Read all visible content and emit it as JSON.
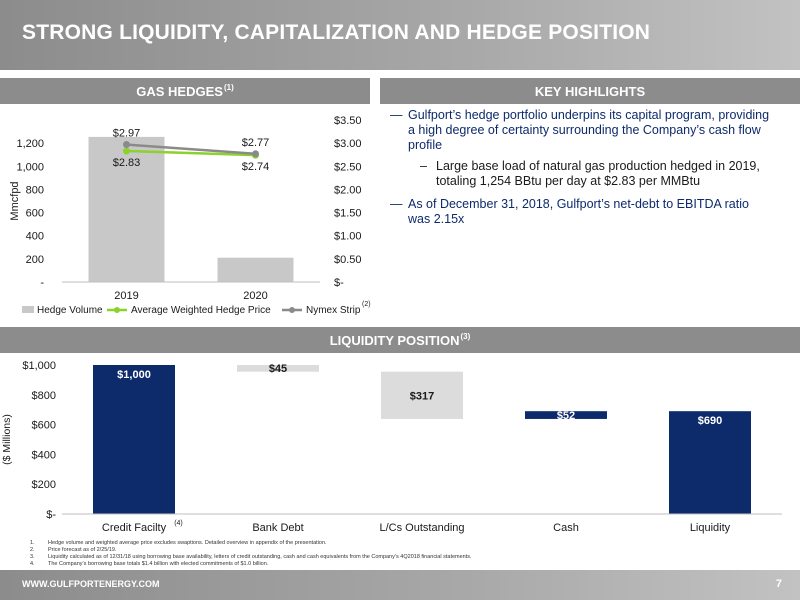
{
  "title": "STRONG LIQUIDITY, CAPITALIZATION AND HEDGE POSITION",
  "gas_hedges": {
    "header": "GAS HEDGES",
    "header_sup": "(1)"
  },
  "key_highlights": {
    "header": "KEY HIGHLIGHTS",
    "bullet1_lines": [
      "Gulfport’s hedge portfolio underpins its capital program, providing",
      "a high degree of certainty surrounding the Company’s cash flow",
      "profile"
    ],
    "sub1_lines": [
      "Large base load of natural gas production hedged in 2019,",
      "totaling 1,254 BBtu per day at $2.83 per MMBtu"
    ],
    "bullet2_lines": [
      "As of December 31, 2018, Gulfport’s net-debt to EBITDA ratio",
      "was 2.15x"
    ]
  },
  "liquidity": {
    "header": "LIQUIDITY POSITION",
    "header_sup": "(3)"
  },
  "colors": {
    "navy": "#0d2a6b",
    "bar_gray": "#c8c8c8",
    "light_gray": "#dcdcdc",
    "green": "#8cd12c",
    "nymex_gray": "#8a8a8a",
    "header_gray": "#8c8c8c"
  },
  "chart_data": [
    {
      "type": "bar",
      "categories": [
        "2019",
        "2020"
      ],
      "series": [
        {
          "name": "Hedge Volume",
          "values": [
            1254,
            210
          ],
          "axis": "left"
        },
        {
          "name": "Average Weighted Hedge Price",
          "values": [
            2.83,
            2.74
          ],
          "axis": "right",
          "type": "line"
        },
        {
          "name": "Nymex Strip",
          "values": [
            2.97,
            2.77
          ],
          "axis": "right",
          "type": "line"
        }
      ],
      "price_labels": [
        {
          "text": "$2.97",
          "series": "Nymex Strip",
          "index": 0
        },
        {
          "text": "$2.77",
          "series": "Nymex Strip",
          "index": 1
        },
        {
          "text": "$2.83",
          "series": "Average Weighted Hedge Price",
          "index": 0
        },
        {
          "text": "$2.74",
          "series": "Average Weighted Hedge Price",
          "index": 1
        }
      ],
      "ylabel": "Mmcfpd",
      "ylim": [
        0,
        1400
      ],
      "y2lim": [
        0,
        3.5
      ],
      "yticks": [
        {
          "value": 0,
          "label": "-"
        },
        {
          "value": 200,
          "label": "200"
        },
        {
          "value": 400,
          "label": "400"
        },
        {
          "value": 600,
          "label": "600"
        },
        {
          "value": 800,
          "label": "800"
        },
        {
          "value": 1000,
          "label": "1,000"
        },
        {
          "value": 1200,
          "label": "1,200"
        }
      ],
      "y2ticks": [
        {
          "value": 0,
          "label": "$-"
        },
        {
          "value": 0.5,
          "label": "$0.50"
        },
        {
          "value": 1.0,
          "label": "$1.00"
        },
        {
          "value": 1.5,
          "label": "$1.50"
        },
        {
          "value": 2.0,
          "label": "$2.00"
        },
        {
          "value": 2.5,
          "label": "$2.50"
        },
        {
          "value": 3.0,
          "label": "$3.00"
        },
        {
          "value": 3.5,
          "label": "$3.50"
        }
      ],
      "legend_position": "bottom",
      "legend_sup": "(2)"
    },
    {
      "type": "bar",
      "subtype": "waterfall",
      "categories": [
        "Credit Facilty",
        "Bank Debt",
        "L/Cs Outstanding",
        "Cash",
        "Liquidity"
      ],
      "category_sups": [
        "(4)",
        "",
        "",
        "",
        ""
      ],
      "bars": [
        {
          "label": "$1,000",
          "bottom": 0,
          "top": 1000,
          "color": "navy"
        },
        {
          "label": "$45",
          "bottom": 955,
          "top": 1000,
          "color": "light_gray"
        },
        {
          "label": "$317",
          "bottom": 638,
          "top": 955,
          "color": "light_gray"
        },
        {
          "label": "$52",
          "bottom": 638,
          "top": 690,
          "color": "navy"
        },
        {
          "label": "$690",
          "bottom": 0,
          "top": 690,
          "color": "navy"
        }
      ],
      "ylabel": "($ Millions)",
      "ylim": [
        0,
        1000
      ],
      "yticks": [
        {
          "value": 0,
          "label": "$-"
        },
        {
          "value": 200,
          "label": "$200"
        },
        {
          "value": 400,
          "label": "$400"
        },
        {
          "value": 600,
          "label": "$600"
        },
        {
          "value": 800,
          "label": "$800"
        },
        {
          "value": 1000,
          "label": "$1,000"
        }
      ]
    }
  ],
  "footnotes": [
    {
      "num": "1.",
      "text": "Hedge volume and weighted average price excludes swaptions. Detailed overview in appendix of the presentation."
    },
    {
      "num": "2.",
      "text": "Price forecast as of 2/25/19."
    },
    {
      "num": "3.",
      "text": "Liquidity calculated as of 12/31/18 using borrowing base availability, letters of credit outstanding, cash and cash equivalents from the Company’s 4Q2018 financial statements."
    },
    {
      "num": "4.",
      "text": "The Company’s borrowing base totals $1.4 billion with elected commitments of $1.0 billion."
    }
  ],
  "footer": {
    "url": "WWW.GULFPORTENERGY.COM",
    "page": "7"
  }
}
